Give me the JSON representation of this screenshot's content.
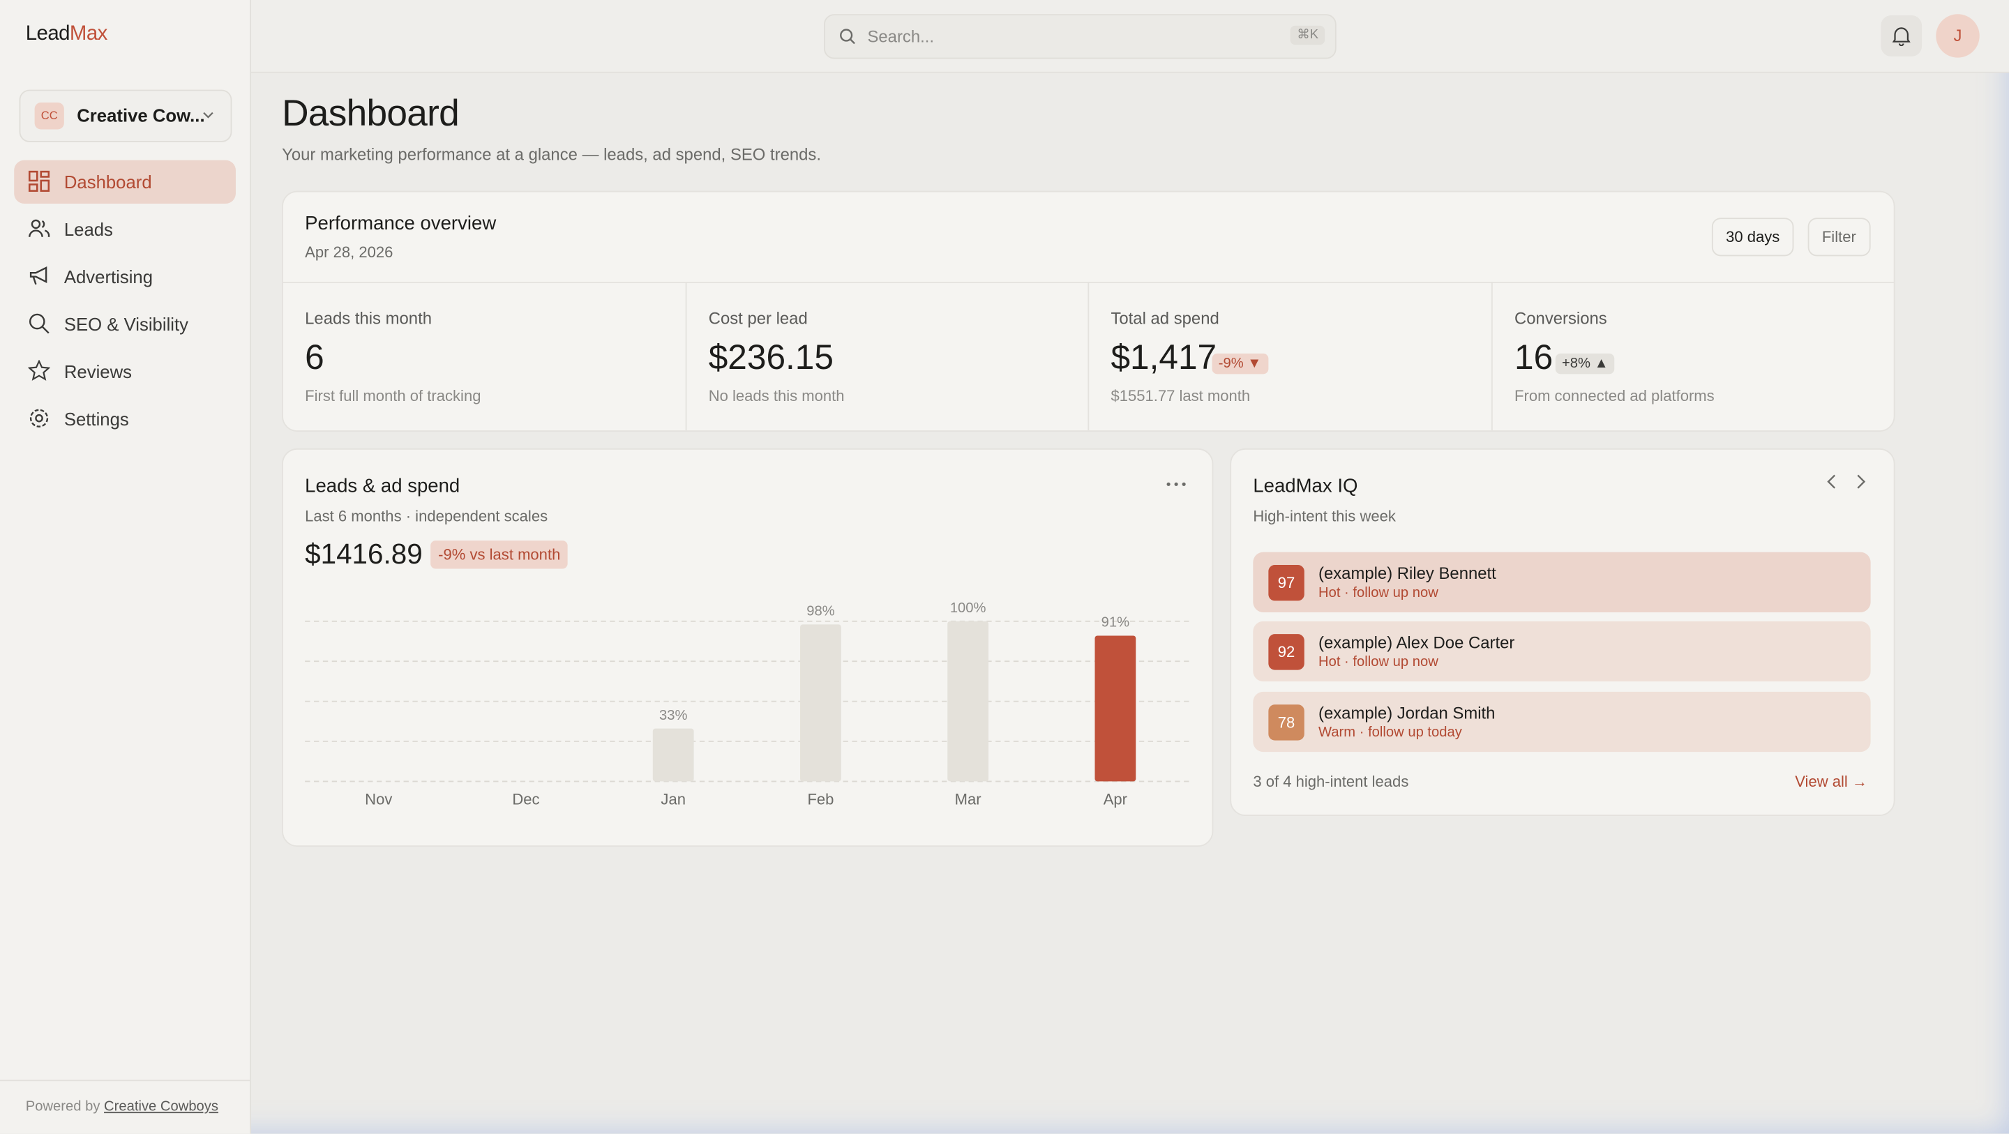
{
  "brand": {
    "first": "Lead",
    "second": "Max"
  },
  "search": {
    "placeholder": "Search...",
    "shortcut": "⌘K"
  },
  "user_initial": "J",
  "workspace": {
    "initials": "CC",
    "name": "Creative Cow..."
  },
  "nav": [
    "Dashboard",
    "Leads",
    "Advertising",
    "SEO & Visibility",
    "Reviews",
    "Settings"
  ],
  "footer": {
    "prefix": "Powered by",
    "link": "Creative Cowboys"
  },
  "header": {
    "title": "Dashboard",
    "subtitle": "Your marketing performance at a glance — leads, ad spend, SEO trends."
  },
  "overview": {
    "title": "Performance overview",
    "date": "Apr 28, 2026",
    "buttons": [
      "30 days",
      "Filter"
    ],
    "kpis": [
      {
        "label": "Leads this month",
        "value": "6",
        "note": "First full month of tracking"
      },
      {
        "label": "Cost per lead",
        "value": "$236.15",
        "note": "No leads this month"
      },
      {
        "label": "Total ad spend",
        "value": "$1,417",
        "badge": "-9% ▼",
        "note": "$1551.77 last month"
      },
      {
        "label": "Conversions",
        "value": "16",
        "badge": "+8% ▲",
        "note": "From connected ad platforms"
      }
    ]
  },
  "leads_card": {
    "total": "$1416.89",
    "badge": "-9% vs last month"
  },
  "chart_data": {
    "type": "bar",
    "title": "Leads & ad spend",
    "subtitle": "Last 6 months · independent scales",
    "categories": [
      "Nov",
      "Dec",
      "Jan",
      "Feb",
      "Mar",
      "Apr"
    ],
    "values": [
      null,
      null,
      33,
      98,
      100,
      91
    ],
    "value_labels": [
      null,
      null,
      "33%",
      "98%",
      "100%",
      "91%"
    ],
    "colors": [
      "#e4e1da",
      "#e4e1da",
      "#e4e1da",
      "#e4e1da",
      "#e4e1da",
      "#c0513a"
    ],
    "ylim": [
      0,
      100
    ],
    "yticks": [
      0,
      25,
      50,
      75,
      100
    ],
    "grid": true
  },
  "iq": {
    "title": "LeadMax IQ",
    "subtitle": "High-intent this week",
    "leads": [
      {
        "score": "97",
        "name": "(example) Riley Bennett",
        "status": "Hot · follow up now"
      },
      {
        "score": "92",
        "name": "(example) Alex Doe Carter",
        "status": "Hot · follow up now"
      },
      {
        "score": "78",
        "name": "(example) Jordan Smith",
        "status": "Warm · follow up today"
      }
    ],
    "count": "3 of 4 high-intent leads",
    "link": "View all →"
  }
}
